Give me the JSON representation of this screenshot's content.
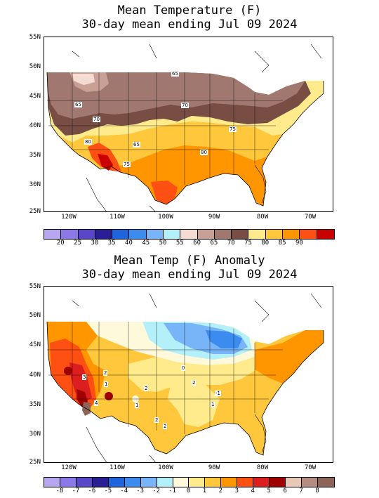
{
  "top": {
    "title_line1": "Mean Temperature (F)",
    "title_line2": "30-day mean ending Jul 09 2024",
    "lat_labels": [
      "55N",
      "50N",
      "45N",
      "40N",
      "35N",
      "30N",
      "25N"
    ],
    "lon_labels": [
      "120W",
      "110W",
      "100W",
      "90W",
      "80W",
      "70W"
    ],
    "contour_labels": [
      "65",
      "65",
      "70",
      "70",
      "75",
      "80",
      "65",
      "75",
      "80"
    ],
    "legend_colors": [
      "#b9a6f0",
      "#8c78e6",
      "#5a46c8",
      "#2a1e96",
      "#1e64dc",
      "#3c8cf0",
      "#78b4f8",
      "#b4f0fa",
      "#f5dcd2",
      "#c8a096",
      "#a07870",
      "#784e44",
      "#ffeb8c",
      "#ffc83c",
      "#ff9600",
      "#ff5014",
      "#c80000"
    ],
    "legend_labels": [
      "20",
      "25",
      "30",
      "35",
      "40",
      "45",
      "50",
      "55",
      "60",
      "65",
      "70",
      "75",
      "80",
      "85",
      "90"
    ]
  },
  "bottom": {
    "title_line1": "Mean Temp (F) Anomaly",
    "title_line2": "30-day mean ending Jul 09 2024",
    "lat_labels": [
      "55N",
      "50N",
      "45N",
      "40N",
      "35N",
      "30N",
      "25N"
    ],
    "lon_labels": [
      "120W",
      "110W",
      "100W",
      "90W",
      "80W",
      "70W"
    ],
    "contour_labels": [
      "3",
      "2",
      "1",
      "2",
      "0",
      "2",
      "1",
      "2",
      "2",
      "1",
      "-1",
      "4"
    ],
    "legend_colors": [
      "#b9a6f0",
      "#8c78e6",
      "#5a46c8",
      "#2a1e96",
      "#1e64dc",
      "#3c8cf0",
      "#78b4f8",
      "#b4f0fa",
      "#fff9dc",
      "#ffeb8c",
      "#ffc83c",
      "#ff9600",
      "#ff5014",
      "#dc1e1e",
      "#a00000",
      "#e6c8b4",
      "#b48c82",
      "#8c6458"
    ],
    "legend_labels": [
      "-8",
      "-7",
      "-6",
      "-5",
      "-4",
      "-3",
      "-2",
      "-1",
      "0",
      "1",
      "2",
      "3",
      "4",
      "5",
      "6",
      "7",
      "8"
    ]
  }
}
